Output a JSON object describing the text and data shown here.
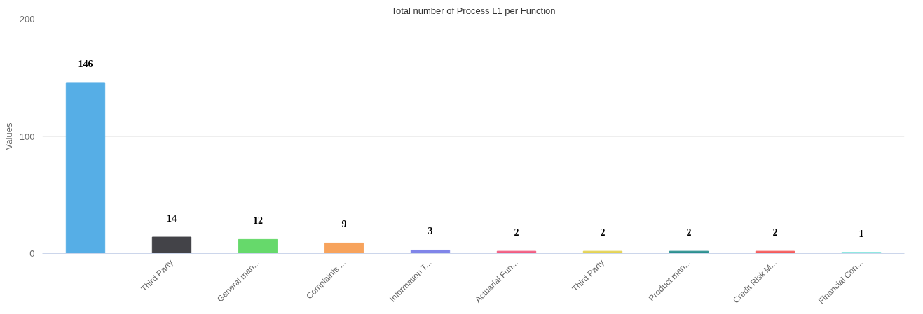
{
  "chart_data": {
    "type": "bar",
    "title": "Total number of Process L1 per Function",
    "ylabel": "Values",
    "categories": [
      null,
      "Third Party",
      "General man...",
      "Complaints ...",
      "Information T...",
      "Actuarial Fun...",
      "Third Party",
      "Product man...",
      "Credit Risk M...",
      "Financial Con..."
    ],
    "values": [
      146,
      14,
      12,
      9,
      3,
      2,
      2,
      2,
      2,
      1
    ],
    "colors": [
      "#56aee6",
      "#434348",
      "#66d96b",
      "#f7a35c",
      "#8085e9",
      "#f15c80",
      "#e4d354",
      "#2b908f",
      "#f45b5b",
      "#91e8e1"
    ],
    "ylim": [
      0,
      200
    ],
    "yticks": [
      0,
      100,
      200
    ],
    "grid": "y",
    "data_labels": true
  }
}
